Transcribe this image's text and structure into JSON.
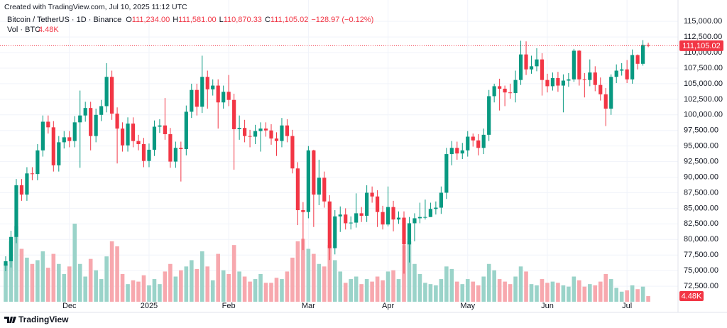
{
  "watermark": "Created with TradingView.com, Jul 10, 2025 11:12 UTC",
  "brand": "TradingView",
  "chart_data": {
    "type": "candlestick",
    "symbol": "Bitcoin / TetherUS · 1D · Binance",
    "fields": [
      {
        "key": "O",
        "value": 111234,
        "label": "111,234.00"
      },
      {
        "key": "H",
        "value": 111581,
        "label": "111,581.00"
      },
      {
        "key": "L",
        "value": 110870.33,
        "label": "110,870.33"
      },
      {
        "key": "C",
        "value": 111105.02,
        "label": "111,105.02"
      }
    ],
    "change": {
      "value": -128.97,
      "label": "−128.97"
    },
    "change_pct": {
      "value": -0.12,
      "label": "(−0.12%)"
    },
    "volume_legend": {
      "name": "Vol · BTC",
      "value": 4480,
      "label": "4.48K"
    },
    "up_color": "#089981",
    "down_color": "#f23645",
    "up_volume_color": "#9ad3c9",
    "down_volume_color": "#f7a8ae",
    "grid": true,
    "ylim": [
      70000,
      117300
    ],
    "yticks": [
      {
        "value": 72500,
        "label": "72,500.00"
      },
      {
        "value": 75000,
        "label": "75,000.00"
      },
      {
        "value": 77500,
        "label": "77,500.00"
      },
      {
        "value": 80000,
        "label": "80,000.00"
      },
      {
        "value": 82500,
        "label": "82,500.00"
      },
      {
        "value": 85000,
        "label": "85,000.00"
      },
      {
        "value": 87500,
        "label": "87,500.00"
      },
      {
        "value": 90000,
        "label": "90,000.00"
      },
      {
        "value": 92500,
        "label": "92,500.00"
      },
      {
        "value": 95000,
        "label": "95,000.00"
      },
      {
        "value": 97500,
        "label": "97,500.00"
      },
      {
        "value": 100000,
        "label": "100,000.00"
      },
      {
        "value": 102500,
        "label": "102,500.00"
      },
      {
        "value": 105000,
        "label": "105,000.00"
      },
      {
        "value": 107500,
        "label": "107,500.00"
      },
      {
        "value": 110000,
        "label": "110,000.00"
      },
      {
        "value": 112500,
        "label": "112,500.00"
      },
      {
        "value": 115000,
        "label": "115,000.00"
      }
    ],
    "categories": [
      null,
      null,
      null,
      null,
      null,
      null,
      null,
      null,
      null,
      null,
      null,
      null,
      "Dec",
      null,
      null,
      null,
      null,
      null,
      null,
      null,
      null,
      null,
      null,
      null,
      null,
      null,
      null,
      "2025",
      null,
      null,
      null,
      null,
      null,
      null,
      null,
      null,
      null,
      null,
      null,
      null,
      null,
      null,
      "Feb",
      null,
      null,
      null,
      null,
      null,
      null,
      null,
      null,
      null,
      null,
      null,
      null,
      null,
      null,
      "Mar",
      null,
      null,
      null,
      null,
      null,
      null,
      null,
      null,
      null,
      null,
      null,
      null,
      null,
      null,
      "Apr",
      null,
      null,
      null,
      null,
      null,
      null,
      null,
      null,
      null,
      null,
      null,
      null,
      null,
      null,
      "May",
      null,
      null,
      null,
      null,
      null,
      null,
      null,
      null,
      null,
      null,
      null,
      null,
      null,
      null,
      "Jun",
      null,
      null,
      null,
      null,
      null,
      null,
      null,
      null,
      null,
      null,
      null,
      null,
      null,
      null,
      "Jul",
      null,
      null,
      null,
      null
    ],
    "open": [
      75800,
      76500,
      80400,
      88700,
      87200,
      90600,
      90500,
      94300,
      98900,
      98000,
      91900,
      95600,
      96400,
      95800,
      98800,
      99900,
      101100,
      96600,
      100000,
      101400,
      106100,
      100200,
      97800,
      95100,
      98600,
      95800,
      95300,
      92600,
      94400,
      98100,
      98300,
      96900,
      92500,
      94700,
      94500,
      100500,
      104000,
      101300,
      106100,
      104100,
      104700,
      102000,
      103700,
      102400,
      97700,
      97900,
      96600,
      96500,
      97400,
      97800,
      97500,
      96200,
      95800,
      98300,
      96600,
      91400,
      84700,
      84400,
      94300,
      87200,
      89900,
      86100,
      78600,
      83700,
      84000,
      82600,
      82700,
      84200,
      83800,
      87500,
      86900,
      84400,
      82400,
      85200,
      83200,
      83500,
      79200,
      82600,
      83400,
      83600,
      83600,
      84900,
      85100,
      87500,
      93700,
      94700,
      93800,
      94300,
      96500,
      95900,
      94700,
      96800,
      103000,
      104600,
      104200,
      103600,
      103500,
      105600,
      109700,
      107300,
      107800,
      108900,
      105600,
      104600,
      105900,
      104700,
      105500,
      105700,
      110300,
      105700,
      105600,
      106800,
      104800,
      103300,
      101000,
      106100,
      107100,
      107300,
      105700,
      109600,
      108200,
      111234
    ],
    "high": [
      77300,
      81400,
      89700,
      89700,
      91600,
      91600,
      95300,
      99900,
      99900,
      99000,
      96600,
      97400,
      97400,
      99800,
      103900,
      102100,
      102100,
      101000,
      102400,
      108300,
      107100,
      101200,
      98800,
      99600,
      99600,
      96800,
      96300,
      95400,
      99100,
      99300,
      102700,
      97900,
      95700,
      95700,
      101500,
      105000,
      105000,
      109500,
      107100,
      105700,
      105700,
      104700,
      106400,
      103400,
      99900,
      99200,
      97600,
      98400,
      98800,
      98800,
      98500,
      97200,
      99500,
      99300,
      97600,
      92400,
      86000,
      95000,
      94400,
      92800,
      90900,
      87100,
      84700,
      85300,
      85000,
      83700,
      87400,
      85200,
      88700,
      88500,
      87900,
      85400,
      88500,
      86200,
      84500,
      84500,
      83600,
      84200,
      85900,
      86400,
      85900,
      86100,
      88500,
      94700,
      95800,
      95700,
      95500,
      97400,
      97000,
      96900,
      97800,
      104000,
      105000,
      105800,
      104700,
      105000,
      107100,
      111900,
      111800,
      109500,
      110700,
      109900,
      106600,
      106800,
      106900,
      106500,
      106700,
      110600,
      110400,
      106700,
      108900,
      107800,
      106000,
      104300,
      106500,
      108100,
      108300,
      108800,
      110500,
      109700,
      112000,
      111581
    ],
    "low": [
      74900,
      75500,
      79400,
      86200,
      86200,
      89500,
      89500,
      93300,
      97000,
      90900,
      90900,
      94600,
      94800,
      94800,
      91500,
      98900,
      94300,
      95600,
      99000,
      100400,
      99200,
      92200,
      94100,
      94100,
      94800,
      94300,
      91600,
      91600,
      93400,
      97100,
      96000,
      91500,
      91500,
      89300,
      93500,
      99500,
      99900,
      100300,
      101000,
      103100,
      97800,
      101000,
      101400,
      91200,
      96000,
      95600,
      94800,
      95300,
      94100,
      96500,
      95200,
      93400,
      94800,
      95600,
      90600,
      82300,
      78300,
      83400,
      82000,
      85500,
      85100,
      76700,
      77600,
      81200,
      81600,
      81600,
      81900,
      82800,
      82800,
      85900,
      82000,
      81600,
      82100,
      81300,
      82500,
      74500,
      76300,
      79700,
      82600,
      83200,
      83600,
      84000,
      84100,
      86500,
      91900,
      92800,
      92900,
      93300,
      94900,
      93500,
      93700,
      95800,
      102000,
      100700,
      101400,
      102600,
      102000,
      104800,
      106400,
      106600,
      107000,
      103100,
      103600,
      103900,
      103700,
      100400,
      104500,
      105300,
      104700,
      102800,
      104600,
      103800,
      102300,
      98200,
      100000,
      105100,
      106300,
      105100,
      105000,
      107300,
      107900,
      110870.33
    ],
    "close": [
      76500,
      80400,
      88700,
      87200,
      90600,
      90500,
      94300,
      98900,
      98000,
      91900,
      95600,
      96400,
      95800,
      98800,
      99900,
      101100,
      96600,
      100000,
      101400,
      106100,
      100200,
      97800,
      95100,
      98600,
      95800,
      95300,
      92600,
      94400,
      98100,
      98300,
      96900,
      92500,
      94700,
      94500,
      100500,
      104000,
      101300,
      106100,
      104100,
      104700,
      102000,
      103700,
      102400,
      97700,
      97900,
      96600,
      96500,
      97400,
      97800,
      97500,
      96200,
      95800,
      98300,
      96600,
      91400,
      84700,
      84400,
      94300,
      87200,
      89900,
      86100,
      78600,
      83700,
      84000,
      82600,
      82700,
      84200,
      83800,
      87500,
      86900,
      84400,
      82400,
      85200,
      83200,
      83500,
      79200,
      82600,
      83400,
      83600,
      83600,
      84900,
      85100,
      87500,
      93700,
      94700,
      93800,
      94300,
      96500,
      95900,
      94700,
      96800,
      103000,
      104600,
      104200,
      103600,
      103500,
      105600,
      109700,
      107300,
      107800,
      108900,
      105600,
      104600,
      105900,
      104700,
      105500,
      105700,
      110300,
      105700,
      105600,
      106800,
      104800,
      103300,
      101000,
      106100,
      107100,
      107300,
      105700,
      109600,
      108200,
      111234,
      111105.02
    ],
    "volume": [
      30000,
      48000,
      60000,
      42000,
      35000,
      30000,
      33000,
      40000,
      27000,
      38000,
      30000,
      22000,
      28000,
      62000,
      30000,
      20000,
      34000,
      25000,
      18000,
      36000,
      48000,
      44000,
      22000,
      14000,
      17000,
      16000,
      21000,
      13000,
      18000,
      14000,
      24000,
      30000,
      20000,
      25000,
      28000,
      33000,
      26000,
      40000,
      28000,
      17000,
      38000,
      25000,
      22000,
      45000,
      24000,
      20000,
      16000,
      18000,
      22000,
      15000,
      15000,
      19000,
      18000,
      24000,
      35000,
      48000,
      50000,
      42000,
      38000,
      30000,
      28000,
      45000,
      33000,
      24000,
      15000,
      18000,
      20000,
      14000,
      18000,
      16000,
      20000,
      17000,
      24000,
      25000,
      18000,
      45000,
      48000,
      30000,
      22000,
      15000,
      14000,
      13000,
      18000,
      28000,
      26000,
      16000,
      14000,
      18000,
      16000,
      13000,
      20000,
      30000,
      25000,
      18000,
      16000,
      14000,
      20000,
      28000,
      24000,
      14000,
      13000,
      18000,
      15000,
      16000,
      15000,
      13000,
      12000,
      20000,
      17000,
      12000,
      14000,
      13000,
      16000,
      22000,
      18000,
      11000,
      8000,
      9000,
      13000,
      10000,
      12000,
      4480
    ]
  }
}
